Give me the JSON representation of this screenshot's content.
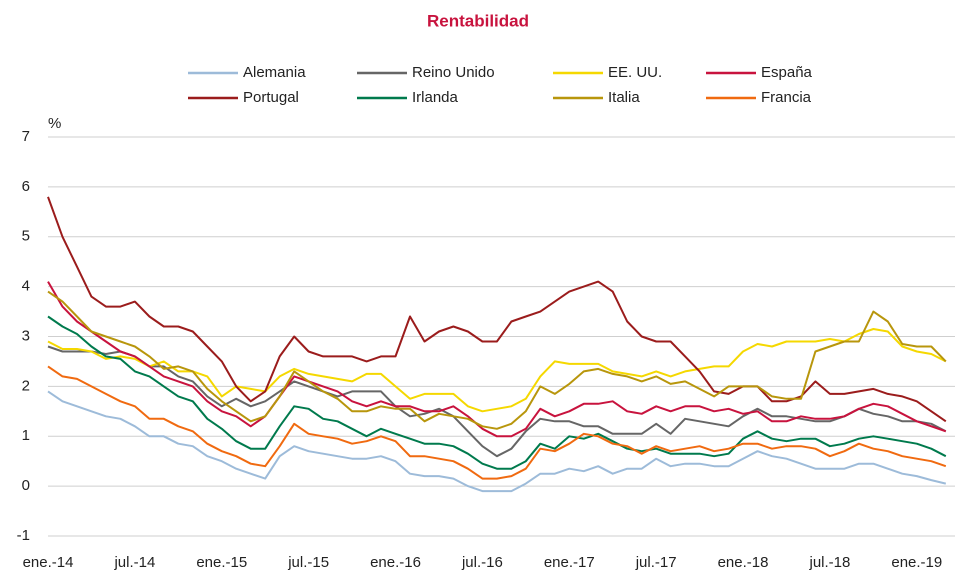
{
  "chart_data": {
    "type": "line",
    "title": "Rentabilidad",
    "y_label": "%",
    "legend": "top",
    "grid": true,
    "categories": [
      "ene.-14",
      null,
      null,
      null,
      null,
      null,
      "jul.-14",
      null,
      null,
      null,
      null,
      null,
      "ene.-15",
      null,
      null,
      null,
      null,
      null,
      "jul.-15",
      null,
      null,
      null,
      null,
      null,
      "ene.-16",
      null,
      null,
      null,
      null,
      null,
      "jul.-16",
      null,
      null,
      null,
      null,
      null,
      "ene.-17",
      null,
      null,
      null,
      null,
      null,
      "jul.-17",
      null,
      null,
      null,
      null,
      null,
      "ene.-18",
      null,
      null,
      null,
      null,
      null,
      "jul.-18",
      null,
      null,
      null,
      null,
      null,
      "ene.-19",
      null,
      null
    ],
    "ylim": [
      -1,
      7
    ],
    "yticks": [
      -1,
      0,
      1,
      2,
      3,
      4,
      5,
      6,
      7
    ],
    "series": [
      {
        "name": "Alemania",
        "color": "#9dbbd9",
        "values": [
          1.9,
          1.7,
          1.6,
          1.5,
          1.4,
          1.35,
          1.2,
          1.0,
          1.0,
          0.85,
          0.8,
          0.6,
          0.5,
          0.35,
          0.25,
          0.15,
          0.6,
          0.8,
          0.7,
          0.65,
          0.6,
          0.55,
          0.55,
          0.6,
          0.5,
          0.25,
          0.2,
          0.2,
          0.15,
          0.0,
          -0.1,
          -0.1,
          -0.1,
          0.05,
          0.25,
          0.25,
          0.35,
          0.3,
          0.4,
          0.25,
          0.35,
          0.35,
          0.55,
          0.4,
          0.45,
          0.45,
          0.4,
          0.4,
          0.55,
          0.7,
          0.6,
          0.55,
          0.45,
          0.35,
          0.35,
          0.35,
          0.45,
          0.45,
          0.35,
          0.25,
          0.2,
          0.12,
          0.05
        ]
      },
      {
        "name": "Reino Unido",
        "color": "#666666",
        "values": [
          2.8,
          2.7,
          2.7,
          2.7,
          2.65,
          2.7,
          2.6,
          2.4,
          2.4,
          2.2,
          2.1,
          1.8,
          1.6,
          1.75,
          1.6,
          1.7,
          1.9,
          2.1,
          2.0,
          1.9,
          1.8,
          1.9,
          1.9,
          1.9,
          1.6,
          1.4,
          1.45,
          1.55,
          1.4,
          1.1,
          0.8,
          0.6,
          0.75,
          1.1,
          1.35,
          1.3,
          1.3,
          1.2,
          1.2,
          1.05,
          1.05,
          1.05,
          1.25,
          1.05,
          1.35,
          1.3,
          1.25,
          1.2,
          1.4,
          1.55,
          1.4,
          1.4,
          1.35,
          1.3,
          1.3,
          1.4,
          1.55,
          1.45,
          1.4,
          1.3,
          1.3,
          1.25,
          1.1
        ]
      },
      {
        "name": "EE. UU.",
        "color": "#f5d800",
        "values": [
          2.9,
          2.75,
          2.75,
          2.7,
          2.55,
          2.6,
          2.55,
          2.4,
          2.5,
          2.3,
          2.3,
          2.2,
          1.8,
          2.0,
          1.95,
          1.9,
          2.2,
          2.35,
          2.25,
          2.2,
          2.15,
          2.1,
          2.25,
          2.25,
          2.0,
          1.75,
          1.85,
          1.85,
          1.85,
          1.6,
          1.5,
          1.55,
          1.6,
          1.75,
          2.2,
          2.5,
          2.45,
          2.45,
          2.45,
          2.3,
          2.25,
          2.2,
          2.3,
          2.2,
          2.3,
          2.35,
          2.4,
          2.4,
          2.7,
          2.85,
          2.8,
          2.9,
          2.9,
          2.9,
          2.95,
          2.9,
          3.05,
          3.15,
          3.1,
          2.8,
          2.7,
          2.65,
          2.5
        ]
      },
      {
        "name": "España",
        "color": "#c8133e",
        "values": [
          4.1,
          3.6,
          3.3,
          3.1,
          2.9,
          2.7,
          2.6,
          2.4,
          2.2,
          2.1,
          2.0,
          1.7,
          1.5,
          1.4,
          1.2,
          1.4,
          1.8,
          2.2,
          2.1,
          2.0,
          1.9,
          1.7,
          1.6,
          1.7,
          1.6,
          1.6,
          1.5,
          1.5,
          1.6,
          1.4,
          1.15,
          1.0,
          1.0,
          1.15,
          1.55,
          1.4,
          1.5,
          1.65,
          1.65,
          1.7,
          1.5,
          1.45,
          1.6,
          1.5,
          1.6,
          1.6,
          1.5,
          1.55,
          1.45,
          1.5,
          1.3,
          1.3,
          1.4,
          1.35,
          1.35,
          1.4,
          1.55,
          1.65,
          1.6,
          1.45,
          1.3,
          1.2,
          1.1
        ]
      },
      {
        "name": "Portugal",
        "color": "#9b1c1c",
        "values": [
          5.8,
          5.0,
          4.4,
          3.8,
          3.6,
          3.6,
          3.7,
          3.4,
          3.2,
          3.2,
          3.1,
          2.8,
          2.5,
          2.0,
          1.7,
          1.9,
          2.6,
          3.0,
          2.7,
          2.6,
          2.6,
          2.6,
          2.5,
          2.6,
          2.6,
          3.4,
          2.9,
          3.1,
          3.2,
          3.1,
          2.9,
          2.9,
          3.3,
          3.4,
          3.5,
          3.7,
          3.9,
          4.0,
          4.1,
          3.9,
          3.3,
          3.0,
          2.9,
          2.9,
          2.6,
          2.3,
          1.9,
          1.85,
          2.0,
          2.0,
          1.7,
          1.7,
          1.8,
          2.1,
          1.85,
          1.85,
          1.9,
          1.95,
          1.85,
          1.8,
          1.7,
          1.5,
          1.3
        ]
      },
      {
        "name": "Irlanda",
        "color": "#007a4d",
        "values": [
          3.4,
          3.2,
          3.05,
          2.8,
          2.6,
          2.55,
          2.3,
          2.2,
          2.0,
          1.8,
          1.7,
          1.35,
          1.15,
          0.9,
          0.75,
          0.75,
          1.2,
          1.6,
          1.55,
          1.35,
          1.3,
          1.15,
          1.0,
          1.15,
          1.05,
          0.95,
          0.85,
          0.85,
          0.8,
          0.65,
          0.45,
          0.35,
          0.35,
          0.5,
          0.85,
          0.75,
          1.0,
          0.95,
          1.05,
          0.9,
          0.75,
          0.7,
          0.75,
          0.65,
          0.65,
          0.65,
          0.6,
          0.65,
          0.95,
          1.1,
          0.95,
          0.9,
          0.95,
          0.95,
          0.8,
          0.85,
          0.95,
          1.0,
          0.95,
          0.9,
          0.85,
          0.75,
          0.6
        ]
      },
      {
        "name": "Italia",
        "color": "#b8960c",
        "values": [
          3.9,
          3.7,
          3.4,
          3.1,
          3.0,
          2.9,
          2.8,
          2.6,
          2.35,
          2.4,
          2.3,
          1.95,
          1.7,
          1.5,
          1.3,
          1.4,
          1.8,
          2.3,
          2.1,
          1.9,
          1.75,
          1.5,
          1.5,
          1.6,
          1.55,
          1.55,
          1.3,
          1.45,
          1.4,
          1.35,
          1.2,
          1.15,
          1.25,
          1.5,
          2.0,
          1.85,
          2.05,
          2.3,
          2.35,
          2.25,
          2.2,
          2.1,
          2.2,
          2.05,
          2.1,
          1.95,
          1.8,
          2.0,
          2.0,
          2.0,
          1.8,
          1.75,
          1.75,
          2.7,
          2.8,
          2.9,
          2.9,
          3.5,
          3.3,
          2.85,
          2.8,
          2.8,
          2.5
        ]
      },
      {
        "name": "Francia",
        "color": "#f06a10",
        "values": [
          2.4,
          2.2,
          2.15,
          2.0,
          1.85,
          1.7,
          1.6,
          1.35,
          1.35,
          1.2,
          1.1,
          0.85,
          0.7,
          0.6,
          0.45,
          0.4,
          0.8,
          1.25,
          1.05,
          1.0,
          0.95,
          0.85,
          0.9,
          1.0,
          0.9,
          0.6,
          0.6,
          0.55,
          0.5,
          0.35,
          0.15,
          0.15,
          0.2,
          0.35,
          0.75,
          0.7,
          0.85,
          1.05,
          1.0,
          0.85,
          0.8,
          0.65,
          0.8,
          0.7,
          0.75,
          0.8,
          0.7,
          0.75,
          0.85,
          0.85,
          0.75,
          0.8,
          0.8,
          0.75,
          0.6,
          0.7,
          0.85,
          0.75,
          0.7,
          0.6,
          0.55,
          0.5,
          0.4
        ]
      }
    ]
  }
}
